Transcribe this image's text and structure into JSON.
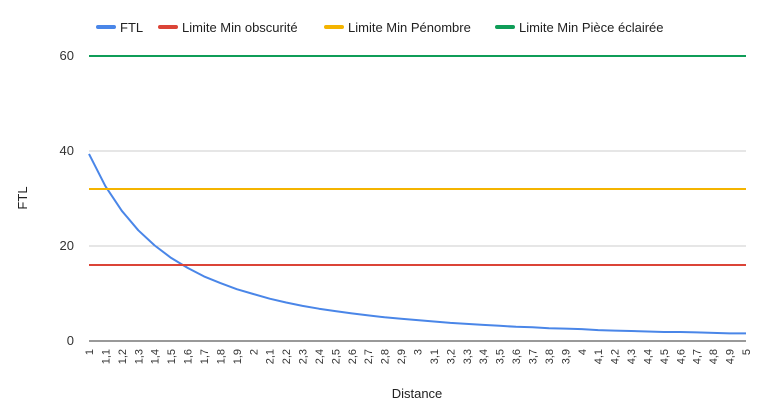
{
  "chart_data": {
    "type": "line",
    "title": "",
    "xlabel": "Distance",
    "ylabel": "FTL",
    "ylim": [
      0,
      60
    ],
    "yticks": [
      0,
      20,
      40,
      60
    ],
    "grid": true,
    "legend_position": "top",
    "x": [
      "1",
      "1,1",
      "1,2",
      "1,3",
      "1,4",
      "1,5",
      "1,6",
      "1,7",
      "1,8",
      "1,9",
      "2",
      "2,1",
      "2,2",
      "2,3",
      "2,4",
      "2,5",
      "2,6",
      "2,7",
      "2,8",
      "2,9",
      "3",
      "3,1",
      "3,2",
      "3,3",
      "3,4",
      "3,5",
      "3,6",
      "3,7",
      "3,8",
      "3,9",
      "4",
      "4,1",
      "4,2",
      "4,3",
      "4,4",
      "4,5",
      "4,6",
      "4,7",
      "4,8",
      "4,9",
      "5"
    ],
    "series": [
      {
        "name": "FTL",
        "color": "#4a86e8",
        "values": [
          39.4,
          32.6,
          27.4,
          23.3,
          20.1,
          17.5,
          15.4,
          13.6,
          12.2,
          10.9,
          9.9,
          8.9,
          8.1,
          7.4,
          6.8,
          6.3,
          5.8,
          5.4,
          5.0,
          4.7,
          4.4,
          4.1,
          3.8,
          3.6,
          3.4,
          3.2,
          3.0,
          2.9,
          2.7,
          2.6,
          2.5,
          2.3,
          2.2,
          2.1,
          2.0,
          1.9,
          1.9,
          1.8,
          1.7,
          1.6,
          1.6
        ]
      },
      {
        "name": "Limite Min obscurité",
        "color": "#db4437",
        "constant": 16
      },
      {
        "name": "Limite Min Pénombre",
        "color": "#f4b400",
        "constant": 32
      },
      {
        "name": "Limite Min Pièce éclairée",
        "color": "#0f9d58",
        "constant": 60
      }
    ]
  }
}
